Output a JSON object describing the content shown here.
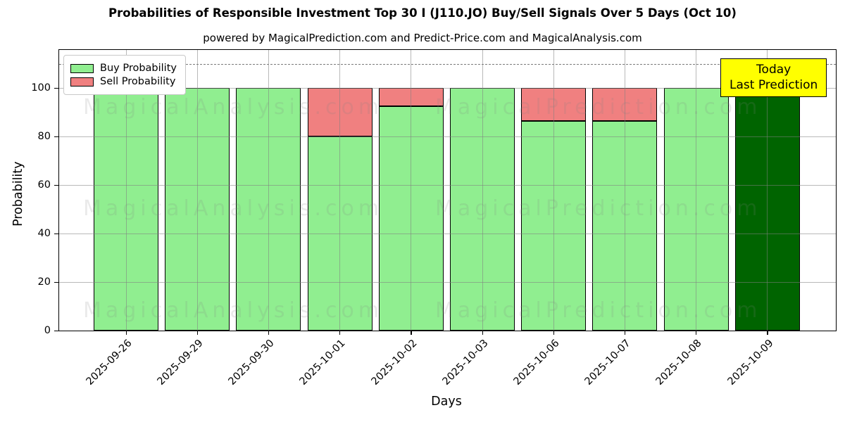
{
  "title": "Probabilities of Responsible Investment Top 30 I (J110.JO) Buy/Sell Signals Over 5 Days (Oct 10)",
  "subtitle": "powered by MagicalPrediction.com and Predict-Price.com and MagicalAnalysis.com",
  "legend": {
    "items": [
      {
        "label": "Buy Probability",
        "color": "#90EE90"
      },
      {
        "label": "Sell Probability",
        "color": "#F08080"
      }
    ]
  },
  "annotation": {
    "line1": "Today",
    "line2": "Last Prediction",
    "bg_color": "#FFFF00"
  },
  "watermarks": {
    "left": "MagicalAnalysis.com",
    "right": "MagicalPrediction.com"
  },
  "chart_data": {
    "type": "bar",
    "stacked": true,
    "categories": [
      "2025-09-26",
      "2025-09-29",
      "2025-09-30",
      "2025-10-01",
      "2025-10-02",
      "2025-10-03",
      "2025-10-06",
      "2025-10-07",
      "2025-10-08",
      "2025-10-09"
    ],
    "series": [
      {
        "name": "Buy Probability",
        "color": "#90EE90",
        "values": [
          100,
          100,
          100,
          80,
          92.5,
          100,
          86.5,
          86.5,
          100,
          100
        ]
      },
      {
        "name": "Sell Probability",
        "color": "#F08080",
        "values": [
          0,
          0,
          0,
          20,
          7.5,
          0,
          13.5,
          13.5,
          0,
          0
        ]
      }
    ],
    "today_index": 9,
    "today_color": "#006400",
    "title": "Probabilities of Responsible Investment Top 30 I (J110.JO) Buy/Sell Signals Over 5 Days (Oct 10)",
    "xlabel": "Days",
    "ylabel": "Probability",
    "yticks": [
      0,
      20,
      40,
      60,
      80,
      100
    ],
    "ylim": [
      0,
      115.7
    ],
    "dashed_line_y": 110,
    "grid": true,
    "legend_position": "upper-left"
  }
}
